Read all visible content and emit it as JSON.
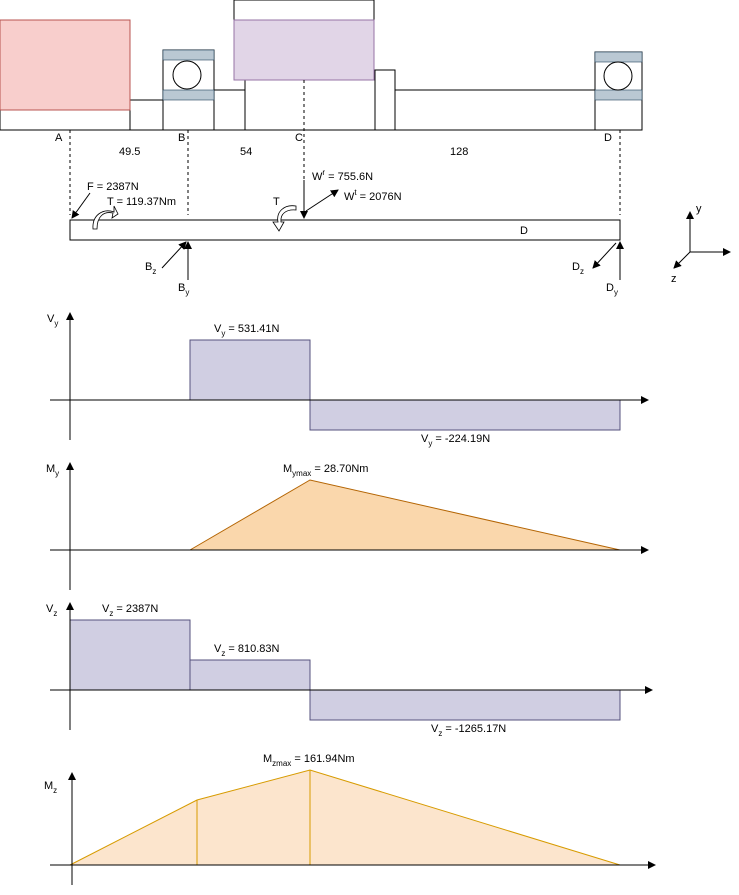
{
  "colors": {
    "coupling_fill": "#f8cecc",
    "coupling_stroke": "#b85450",
    "gear_fill": "#e1d5e7",
    "gear_stroke": "#9673a6",
    "bearing_race": "#bac8d3",
    "shear_fill": "#d0cee2",
    "shear_stroke": "#56517e",
    "moment_y_fill": "#fad7ac",
    "moment_y_stroke": "#b46504",
    "moment_z_fill": "#fce5cd",
    "moment_z_stroke": "#d79b00",
    "line": "#000000"
  },
  "shaft": {
    "points": [
      "A",
      "B",
      "C",
      "D"
    ],
    "spans": [
      "49.5",
      "54",
      "128"
    ]
  },
  "fbd": {
    "force_f": "F = 2387N",
    "torque_left": "T = 119.37Nm",
    "torque_right": "T",
    "wr": "W",
    "wr_sup": "r",
    "wr_val": " = 755.6N",
    "wt": "W",
    "wt_sup": "t",
    "wt_val": " = 2076N",
    "beam_label": "D",
    "bz": "B",
    "bz_sub": "z",
    "by": "B",
    "by_sub": "y",
    "dz": "D",
    "dz_sub": "z",
    "dy": "D",
    "dy_sub": "y"
  },
  "axes": {
    "y": "y",
    "z": "z"
  },
  "charts": {
    "vy": {
      "axis": "V",
      "axis_sub": "y",
      "pos_label": "V",
      "pos_sub": "y",
      "pos_val": " = 531.41N",
      "neg_label": "V",
      "neg_sub": "y",
      "neg_val": " = -224.19N"
    },
    "my": {
      "axis": "M",
      "axis_sub": "y",
      "max_label": "M",
      "max_sub": "ymax",
      "max_val": " = 28.70Nm"
    },
    "vz": {
      "axis": "V",
      "axis_sub": "z",
      "a_label": "V",
      "a_sub": "z",
      "a_val": " = 2387N",
      "b_label": "V",
      "b_sub": "z",
      "b_val": " = 810.83N",
      "c_label": "V",
      "c_sub": "z",
      "c_val": " = -1265.17N"
    },
    "mz": {
      "axis": "M",
      "axis_sub": "z",
      "max_label": "M",
      "max_sub": "zmax",
      "max_val": " = 161.94Nm"
    }
  },
  "chart_data": [
    {
      "type": "area",
      "name": "Vy",
      "x": [
        "A",
        "B",
        "C",
        "D"
      ],
      "values": [
        0,
        531.41,
        -224.19,
        0
      ],
      "unit": "N"
    },
    {
      "type": "area",
      "name": "My",
      "x": [
        "A",
        "B",
        "C",
        "D"
      ],
      "values": [
        0,
        0,
        28.7,
        0
      ],
      "unit": "Nm"
    },
    {
      "type": "area",
      "name": "Vz",
      "x": [
        "A",
        "B",
        "C",
        "D"
      ],
      "values": [
        2387,
        810.83,
        -1265.17,
        0
      ],
      "unit": "N"
    },
    {
      "type": "area",
      "name": "Mz",
      "x": [
        "A",
        "B",
        "C",
        "D"
      ],
      "values": [
        0,
        118.16,
        161.94,
        0
      ],
      "unit": "Nm"
    }
  ]
}
